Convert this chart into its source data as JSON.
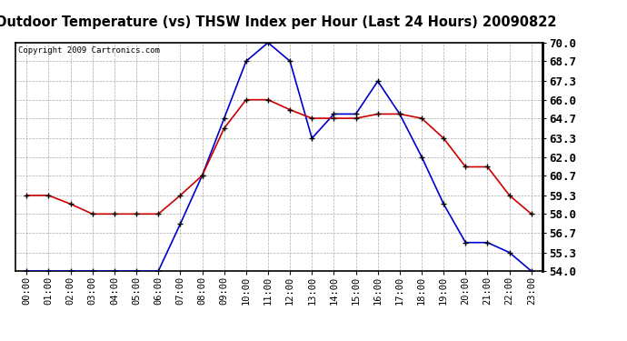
{
  "title": "Outdoor Temperature (vs) THSW Index per Hour (Last 24 Hours) 20090822",
  "copyright_text": "Copyright 2009 Cartronics.com",
  "hours": [
    "00:00",
    "01:00",
    "02:00",
    "03:00",
    "04:00",
    "05:00",
    "06:00",
    "07:00",
    "08:00",
    "09:00",
    "10:00",
    "11:00",
    "12:00",
    "13:00",
    "14:00",
    "15:00",
    "16:00",
    "17:00",
    "18:00",
    "19:00",
    "20:00",
    "21:00",
    "22:00",
    "23:00"
  ],
  "blue_thsw": [
    54.0,
    54.0,
    54.0,
    54.0,
    54.0,
    54.0,
    54.0,
    57.3,
    60.7,
    64.7,
    68.7,
    70.0,
    68.7,
    63.3,
    65.0,
    65.0,
    67.3,
    65.0,
    62.0,
    58.7,
    56.0,
    56.0,
    55.3,
    54.0
  ],
  "red_temp": [
    59.3,
    59.3,
    58.7,
    58.0,
    58.0,
    58.0,
    58.0,
    59.3,
    60.7,
    64.0,
    66.0,
    66.0,
    65.3,
    64.7,
    64.7,
    64.7,
    65.0,
    65.0,
    64.7,
    63.3,
    61.3,
    61.3,
    59.3,
    58.0
  ],
  "ylim_min": 54.0,
  "ylim_max": 70.0,
  "yticks": [
    54.0,
    55.3,
    56.7,
    58.0,
    59.3,
    60.7,
    62.0,
    63.3,
    64.7,
    66.0,
    67.3,
    68.7,
    70.0
  ],
  "blue_color": "#0000cc",
  "red_color": "#cc0000",
  "bg_color": "#ffffff",
  "grid_color": "#aaaaaa",
  "title_fontsize": 10.5,
  "copyright_fontsize": 6.5,
  "tick_label_fontsize": 7.5,
  "ytick_label_fontsize": 9
}
